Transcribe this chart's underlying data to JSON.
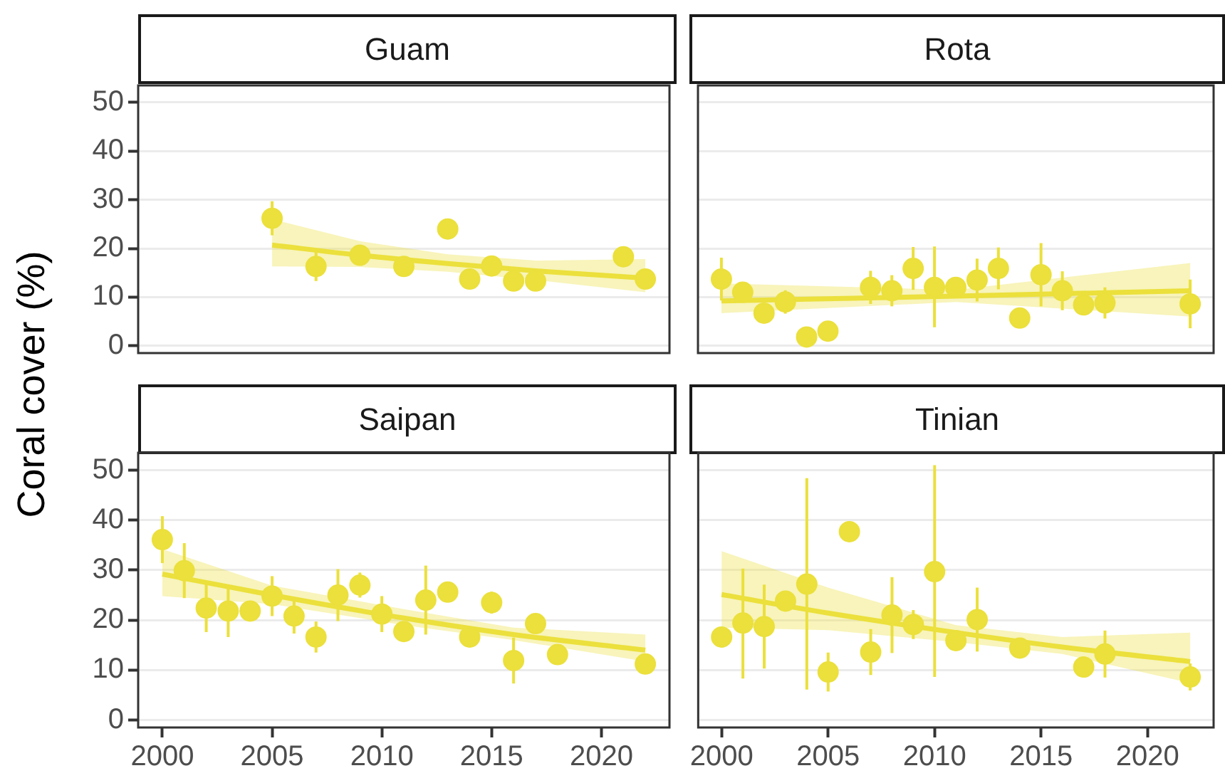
{
  "chart_data": [
    {
      "type": "scatter",
      "title": "Guam",
      "ylabel": "Coral cover (%)",
      "xlim": [
        1998.9,
        2023.1
      ],
      "xticks": [
        2000,
        2005,
        2010,
        2015,
        2020
      ],
      "ylim": [
        -1.5,
        53.5
      ],
      "yticks": [
        0,
        10,
        20,
        30,
        40,
        50
      ],
      "grid": "y",
      "tick_labels": "y",
      "series": [
        {
          "color": "#ebe03c",
          "marker": "circle",
          "x": [
            2005,
            2007,
            2009,
            2011,
            2013,
            2014,
            2015,
            2016,
            2017,
            2021,
            2022
          ],
          "values": [
            26.2,
            16.3,
            18.6,
            16.3,
            24.0,
            13.7,
            16.4,
            13.3,
            13.3,
            18.3,
            13.7
          ],
          "errors": [
            3.5,
            3,
            2,
            null,
            null,
            null,
            null,
            null,
            null,
            1.5,
            null
          ]
        },
        {
          "type": "line",
          "color": "#ebe03c",
          "x": [
            2005,
            2009,
            2013,
            2017,
            2022
          ],
          "values": [
            20.7,
            18.6,
            16.9,
            15.4,
            13.9
          ],
          "lower": [
            16.3,
            16.2,
            15.2,
            13.5,
            11.0
          ],
          "upper": [
            26.0,
            21.5,
            18.8,
            17.5,
            17.8
          ]
        }
      ]
    },
    {
      "type": "scatter",
      "title": "Rota",
      "xlim": [
        1998.9,
        2023.1
      ],
      "xticks": [
        2000,
        2005,
        2010,
        2015,
        2020
      ],
      "ylim": [
        -1.5,
        53.5
      ],
      "yticks": [
        0,
        10,
        20,
        30,
        40,
        50
      ],
      "grid": "y",
      "tick_labels": false,
      "series": [
        {
          "color": "#ebe03c",
          "marker": "circle",
          "x": [
            2000,
            2001,
            2002,
            2003,
            2004,
            2005,
            2007,
            2008,
            2009,
            2010,
            2011,
            2012,
            2013,
            2014,
            2015,
            2016,
            2017,
            2018,
            2022
          ],
          "values": [
            13.7,
            11.0,
            6.7,
            9.0,
            1.8,
            3.0,
            12.0,
            11.3,
            15.9,
            12.0,
            12.0,
            13.5,
            15.9,
            5.7,
            14.6,
            11.3,
            8.4,
            8.8,
            8.6
          ],
          "errors": [
            4.4,
            null,
            null,
            2.4,
            null,
            1.2,
            3.4,
            3.2,
            4.4,
            [
              3.8,
              20.4
            ],
            2,
            4.4,
            4.3,
            null,
            6.5,
            4,
            null,
            3.2,
            5
          ]
        },
        {
          "type": "line",
          "color": "#ebe03c",
          "x": [
            2000,
            2011,
            2022
          ],
          "values": [
            9.2,
            10.2,
            11.3
          ],
          "lower": [
            6.7,
            9.0,
            6.0
          ],
          "upper": [
            12.8,
            11.5,
            17.0
          ]
        }
      ]
    },
    {
      "type": "scatter",
      "title": "Saipan",
      "xlim": [
        1998.9,
        2023.1
      ],
      "xticks": [
        2000,
        2005,
        2010,
        2015,
        2020
      ],
      "ylim": [
        -1.5,
        53.5
      ],
      "yticks": [
        0,
        10,
        20,
        30,
        40,
        50
      ],
      "grid": "y",
      "series": [
        {
          "color": "#ebe03c",
          "marker": "circle",
          "x": [
            2000,
            2001,
            2002,
            2003,
            2004,
            2005,
            2006,
            2007,
            2008,
            2009,
            2010,
            2011,
            2012,
            2013,
            2014,
            2015,
            2016,
            2017,
            2018,
            2022
          ],
          "values": [
            36.1,
            29.9,
            22.4,
            21.8,
            21.8,
            24.8,
            20.8,
            16.6,
            25.0,
            27.0,
            21.2,
            17.7,
            24.0,
            25.6,
            16.6,
            23.5,
            11.9,
            19.3,
            13.1,
            11.2
          ],
          "errors": [
            4.7,
            5.5,
            4.8,
            5.2,
            null,
            4,
            3.5,
            3.1,
            5.2,
            2.5,
            3.6,
            null,
            6.9,
            null,
            null,
            2.2,
            4.6,
            null,
            null,
            1
          ]
        },
        {
          "type": "line",
          "color": "#ebe03c",
          "x": [
            2000,
            2005,
            2011,
            2016,
            2022
          ],
          "values": [
            29.2,
            25.0,
            20.4,
            17.1,
            14.0
          ],
          "lower": [
            24.8,
            23.2,
            19.0,
            16.0,
            11.7
          ],
          "upper": [
            34.2,
            26.9,
            22.2,
            18.5,
            17.1
          ]
        }
      ]
    },
    {
      "type": "scatter",
      "title": "Tinian",
      "xlim": [
        1998.9,
        2023.1
      ],
      "xticks": [
        2000,
        2005,
        2010,
        2015,
        2020
      ],
      "ylim": [
        -1.5,
        53.5
      ],
      "yticks": [
        0,
        10,
        20,
        30,
        40,
        50
      ],
      "grid": "y",
      "tick_labels": "x",
      "series": [
        {
          "color": "#ebe03c",
          "marker": "circle",
          "x": [
            2000,
            2001,
            2002,
            2003,
            2004,
            2005,
            2006,
            2007,
            2008,
            2009,
            2010,
            2011,
            2012,
            2014,
            2017,
            2018,
            2022
          ],
          "values": [
            16.6,
            19.4,
            18.7,
            23.8,
            27.2,
            9.6,
            37.7,
            13.6,
            21.0,
            19.1,
            29.7,
            15.9,
            20.1,
            14.4,
            10.6,
            13.2,
            8.6
          ],
          "errors": [
            null,
            [
              8.3,
              30.3
            ],
            8.4,
            null,
            [
              6.1,
              48.4
            ],
            3.9,
            null,
            4.6,
            7.6,
            2.9,
            [
              8.6,
              51
            ],
            2,
            6.4,
            1,
            null,
            4.7,
            2.7
          ]
        },
        {
          "type": "line",
          "color": "#ebe03c",
          "x": [
            2000,
            2005,
            2011,
            2016,
            2022
          ],
          "values": [
            25.1,
            21.4,
            17.5,
            14.6,
            11.7
          ],
          "lower": [
            18.5,
            18.0,
            15.6,
            13.2,
            7.4
          ],
          "upper": [
            33.8,
            26.5,
            19.0,
            16.6,
            17.5
          ]
        }
      ]
    }
  ]
}
